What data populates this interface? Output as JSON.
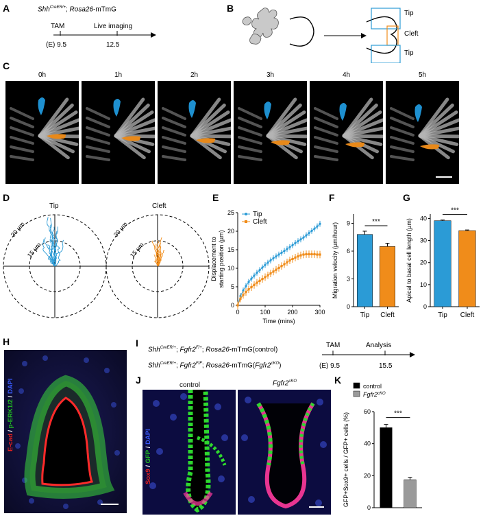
{
  "panels": {
    "A": "A",
    "B": "B",
    "C": "C",
    "D": "D",
    "E": "E",
    "F": "F",
    "G": "G",
    "H": "H",
    "I": "I",
    "J": "J",
    "K": "K"
  },
  "panelA": {
    "genotype_gene": "Shh",
    "genotype_sup": "CreER/+",
    "genotype_rest": "; ",
    "genotype_gene2": "Rosa26",
    "genotype_rest2": "-mTmG",
    "event1": "TAM",
    "event2": "Live imaging",
    "stage_prefix": "(E) 9.5",
    "stage2": "12.5"
  },
  "panelB": {
    "tip_top": "Tip",
    "cleft": "Cleft",
    "tip_bottom": "Tip"
  },
  "panelC": {
    "times": [
      "0h",
      "1h",
      "2h",
      "3h",
      "4h",
      "5h"
    ]
  },
  "panelD": {
    "plots": [
      {
        "title": "Tip",
        "color": "#2b9bd6",
        "r_outer": "30 µm",
        "r_inner": "15 µm"
      },
      {
        "title": "Cleft",
        "color": "#f08c1a",
        "r_outer": "30 µm",
        "r_inner": "15 µm"
      }
    ]
  },
  "panelH": {
    "legend_ecad": "E-cad",
    "legend_sep1": " / ",
    "legend_perk": "p-ERK1/2",
    "legend_sep2": " / ",
    "legend_dapi": "DAPI"
  },
  "panelI": {
    "line1_gene": "Shh",
    "line1_sup": "CreER/+",
    "line1_mid": "; ",
    "line1_gene2": "Fgfr2",
    "line1_sup2": "F/+",
    "line1_rest": "; ",
    "line1_gene3": "Rosa26",
    "line1_end": "-mTmG(control)",
    "line2_gene": "Shh",
    "line2_sup": "CreER/+",
    "line2_mid": "; ",
    "line2_gene2": "Fgfr2",
    "line2_sup2": "F/F",
    "line2_rest": "; ",
    "line2_gene3": "Rosa26",
    "line2_end": "-mTmG(",
    "line2_gene4": "Fgfr2",
    "line2_sup4": "cKO",
    "line2_close": ")",
    "event1": "TAM",
    "event2": "Analysis",
    "stage1": "(E) 9.5",
    "stage2": "15.5"
  },
  "panelJ": {
    "col1": "control",
    "col2_gene": "Fgfr2",
    "col2_sup": "cKO",
    "legend_sox9": "Sox9",
    "legend_sep1": " / ",
    "legend_gfp": "GFP",
    "legend_sep2": " / ",
    "legend_dapi": "DAPI"
  },
  "chart_data": [
    {
      "panel": "E",
      "type": "line",
      "xlabel": "Time (mins)",
      "ylabel": "Displacement to starting position (µm)",
      "ylabel_line1": "Displacement to",
      "ylabel_line2": "starting position (µm)",
      "xlim": [
        0,
        300
      ],
      "ylim": [
        0,
        25
      ],
      "xticks": [
        0,
        100,
        200,
        300
      ],
      "yticks": [
        0,
        5,
        10,
        15,
        20,
        25
      ],
      "legend_position": "top-left",
      "series": [
        {
          "name": "Tip",
          "color": "#2b9bd6",
          "marker": "circle",
          "x": [
            0,
            10,
            20,
            30,
            40,
            50,
            60,
            70,
            80,
            90,
            100,
            110,
            120,
            130,
            140,
            150,
            160,
            170,
            180,
            190,
            200,
            210,
            220,
            230,
            240,
            250,
            260,
            270,
            280,
            290,
            300
          ],
          "y": [
            0,
            2.5,
            4,
            5.2,
            6.3,
            7.2,
            8.0,
            8.8,
            9.5,
            10.2,
            10.9,
            11.5,
            12.1,
            12.7,
            13.2,
            13.7,
            14.2,
            14.7,
            15.2,
            15.7,
            16.2,
            16.8,
            17.3,
            17.8,
            18.3,
            18.9,
            19.5,
            20.1,
            20.7,
            21.3,
            22.0
          ],
          "err": 0.8
        },
        {
          "name": "Cleft",
          "color": "#f08c1a",
          "marker": "square",
          "x": [
            0,
            10,
            20,
            30,
            40,
            50,
            60,
            70,
            80,
            90,
            100,
            110,
            120,
            130,
            140,
            150,
            160,
            170,
            180,
            190,
            200,
            210,
            220,
            230,
            240,
            250,
            260,
            270,
            280,
            290,
            300
          ],
          "y": [
            0,
            1.8,
            2.8,
            3.6,
            4.3,
            4.9,
            5.5,
            6.1,
            6.6,
            7.1,
            7.6,
            8.1,
            8.6,
            9.1,
            9.6,
            10.1,
            10.6,
            11.1,
            11.6,
            12.1,
            12.5,
            12.9,
            13.2,
            13.5,
            13.7,
            13.8,
            13.8,
            13.8,
            13.8,
            13.7,
            13.7
          ],
          "err": 1.0
        }
      ]
    },
    {
      "panel": "F",
      "type": "bar",
      "ylabel": "Migration velocity (µm/hour)",
      "categories": [
        "Tip",
        "Cleft"
      ],
      "values": [
        7.8,
        6.5
      ],
      "errors": [
        0.35,
        0.35
      ],
      "colors": [
        "#2b9bd6",
        "#f08c1a"
      ],
      "ylim": [
        0,
        10
      ],
      "yticks": [
        0,
        3,
        6,
        9
      ],
      "significance": "***"
    },
    {
      "panel": "G",
      "type": "bar",
      "ylabel": "Apical to basal cell length (µm)",
      "categories": [
        "Tip",
        "Cleft"
      ],
      "values": [
        39,
        34.5
      ],
      "errors": [
        0.3,
        0.3
      ],
      "colors": [
        "#2b9bd6",
        "#f08c1a"
      ],
      "ylim": [
        0,
        42
      ],
      "yticks": [
        0,
        10,
        20,
        30,
        40
      ],
      "significance": "***"
    },
    {
      "panel": "K",
      "type": "bar",
      "ylabel": "GFP+Sox9+ cells / GFP+ cells (%)",
      "categories": [
        "control",
        "Fgfr2cKO"
      ],
      "values": [
        50,
        17.5
      ],
      "errors": [
        2,
        1.5
      ],
      "colors": [
        "#000000",
        "#9a9a9a"
      ],
      "ylim": [
        0,
        60
      ],
      "yticks": [
        0,
        20,
        40,
        60
      ],
      "legend": [
        "control",
        "Fgfr2cKO"
      ],
      "legend_position": "top",
      "significance": "***"
    }
  ]
}
